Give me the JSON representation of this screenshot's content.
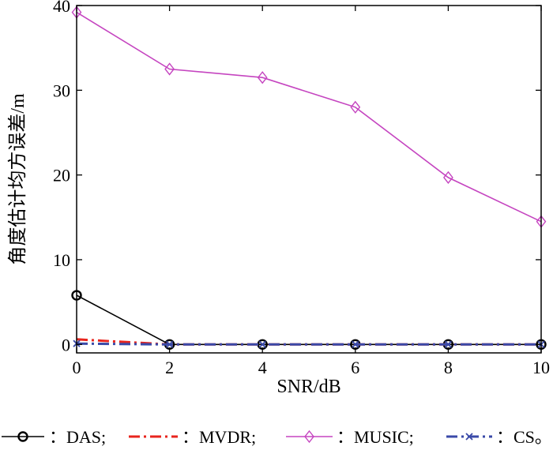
{
  "chart_data": {
    "type": "line",
    "title": "",
    "xlabel": "SNR/dB",
    "ylabel": "角度估计均方误差/m",
    "xlim": [
      0,
      10
    ],
    "ylim": [
      -1,
      40
    ],
    "x_ticks": [
      0,
      2,
      4,
      6,
      8,
      10
    ],
    "y_ticks": [
      0,
      10,
      20,
      30,
      40
    ],
    "grid": false,
    "legend_placement": "bottom",
    "x": [
      0,
      2,
      4,
      6,
      8,
      10
    ],
    "series": [
      {
        "name": "DAS",
        "legend_label": "：DAS;",
        "color": "#000000",
        "style": "solid",
        "marker": "circle",
        "values": [
          5.8,
          0.0,
          0.0,
          0.0,
          0.0,
          0.0
        ]
      },
      {
        "name": "MVDR",
        "legend_label": "：MVDR;",
        "color": "#e8251e",
        "style": "dashdot",
        "marker": "none",
        "values": [
          0.6,
          0.0,
          0.0,
          0.0,
          0.0,
          0.0
        ]
      },
      {
        "name": "MUSIC",
        "legend_label": "：MUSIC;",
        "color": "#c545c0",
        "style": "solid",
        "marker": "diamond",
        "values": [
          39.2,
          32.5,
          31.5,
          28.0,
          19.7,
          14.5
        ]
      },
      {
        "name": "CS",
        "legend_label": "：CS。",
        "color": "#3a4aa8",
        "style": "dashdot",
        "marker": "x",
        "values": [
          0.1,
          0.0,
          0.0,
          0.0,
          0.0,
          0.0
        ]
      }
    ]
  }
}
